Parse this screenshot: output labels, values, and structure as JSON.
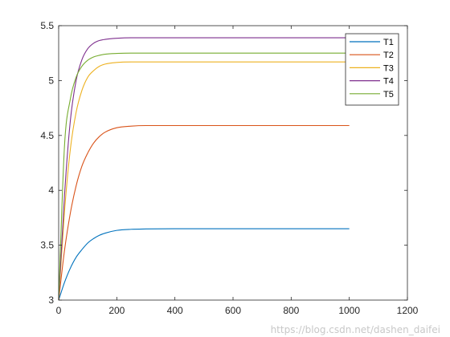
{
  "chart_data": {
    "type": "line",
    "title": "",
    "xlabel": "",
    "ylabel": "",
    "xlim": [
      0,
      1200
    ],
    "ylim": [
      3,
      5.5
    ],
    "x_ticks": [
      0,
      200,
      400,
      600,
      800,
      1000,
      1200
    ],
    "y_ticks": [
      3,
      3.5,
      4,
      4.5,
      5,
      5.5
    ],
    "x_tick_labels": [
      "0",
      "200",
      "400",
      "600",
      "800",
      "1000",
      "1200"
    ],
    "y_tick_labels": [
      "3",
      "3.5",
      "4",
      "4.5",
      "5",
      "5.5"
    ],
    "grid": false,
    "legend_position": "top-right",
    "x": [
      0,
      20,
      40,
      60,
      80,
      100,
      120,
      140,
      160,
      200,
      250,
      300,
      400,
      500,
      600,
      800,
      1000
    ],
    "series": [
      {
        "name": "T1",
        "color": "#0072BD",
        "values": [
          3.0,
          3.16,
          3.29,
          3.39,
          3.46,
          3.52,
          3.56,
          3.59,
          3.61,
          3.635,
          3.645,
          3.648,
          3.65,
          3.65,
          3.65,
          3.65,
          3.65
        ]
      },
      {
        "name": "T2",
        "color": "#D95319",
        "values": [
          3.0,
          3.45,
          3.79,
          4.04,
          4.22,
          4.34,
          4.43,
          4.49,
          4.53,
          4.57,
          4.585,
          4.59,
          4.59,
          4.59,
          4.59,
          4.59,
          4.59
        ]
      },
      {
        "name": "T3",
        "color": "#EDB120",
        "values": [
          3.0,
          3.8,
          4.37,
          4.71,
          4.91,
          5.03,
          5.09,
          5.13,
          5.15,
          5.165,
          5.17,
          5.17,
          5.17,
          5.17,
          5.17,
          5.17,
          5.17
        ]
      },
      {
        "name": "T4",
        "color": "#7E2F8E",
        "values": [
          3.0,
          3.95,
          4.63,
          5.0,
          5.19,
          5.29,
          5.34,
          5.365,
          5.375,
          5.385,
          5.39,
          5.39,
          5.39,
          5.39,
          5.39,
          5.39,
          5.39
        ]
      },
      {
        "name": "T5",
        "color": "#77AC30",
        "values": [
          3.0,
          4.4,
          4.83,
          5.03,
          5.13,
          5.185,
          5.215,
          5.23,
          5.24,
          5.247,
          5.25,
          5.25,
          5.25,
          5.25,
          5.25,
          5.25,
          5.25
        ]
      }
    ]
  },
  "watermark": "https://blog.csdn.net/dashen_daifei"
}
